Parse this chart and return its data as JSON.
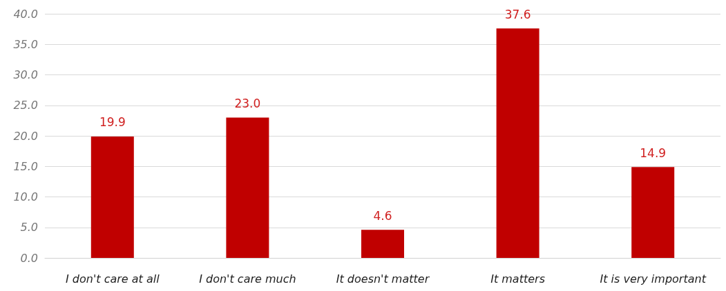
{
  "chart_data": {
    "type": "bar",
    "categories": [
      "I don't care at all",
      "I don't care much",
      "It doesn't matter",
      "It matters",
      "It is very important"
    ],
    "values": [
      19.9,
      23.0,
      4.6,
      37.6,
      14.9
    ],
    "value_labels": [
      "19.9",
      "23.0",
      "4.6",
      "37.6",
      "14.9"
    ],
    "color": "#c00000",
    "ylim": [
      0,
      40
    ],
    "yticks": [
      {
        "value": 0,
        "label": "0.0"
      },
      {
        "value": 5,
        "label": "5.0"
      },
      {
        "value": 10,
        "label": "10.0"
      },
      {
        "value": 15,
        "label": "15.0"
      },
      {
        "value": 20,
        "label": "20.0"
      },
      {
        "value": 25,
        "label": "25.0"
      },
      {
        "value": 30,
        "label": "30.0"
      },
      {
        "value": 35,
        "label": "35.0"
      },
      {
        "value": 40,
        "label": "40.0"
      }
    ],
    "grid": "y"
  }
}
